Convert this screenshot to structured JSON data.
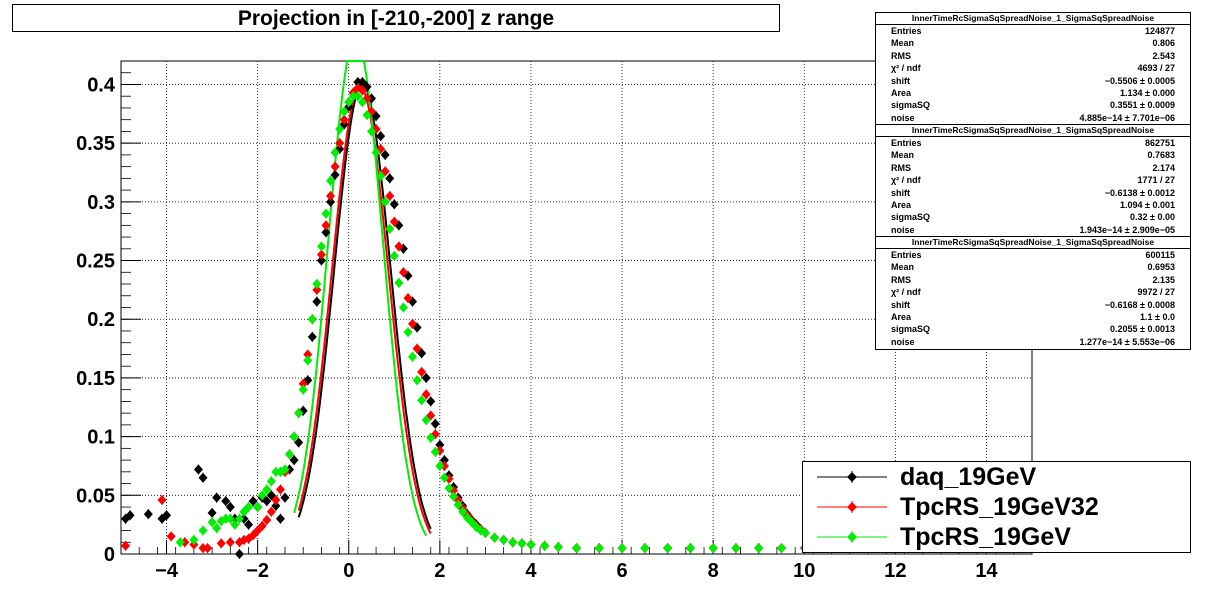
{
  "title": "Projection in [-210,-200] z range",
  "chart_data": {
    "type": "scatter",
    "xlim": [
      -5,
      15
    ],
    "ylim": [
      0,
      0.42
    ],
    "x_ticks": [
      -4,
      -2,
      0,
      2,
      4,
      6,
      8,
      10,
      12,
      14
    ],
    "x_tick_labels": [
      "−4",
      "−2",
      "0",
      "2",
      "4",
      "6",
      "8",
      "10",
      "12",
      "14"
    ],
    "y_ticks": [
      0,
      0.05,
      0.1,
      0.15,
      0.2,
      0.25,
      0.3,
      0.35,
      0.4
    ],
    "y_tick_labels": [
      "0",
      "0.05",
      "0.1",
      "0.15",
      "0.2",
      "0.25",
      "0.3",
      "0.35",
      "0.4"
    ],
    "grid": true,
    "legend_position": "bottom-right",
    "series": [
      {
        "name": "daq_19GeV",
        "color": "#000000",
        "points": [
          [
            -4.9,
            0.03
          ],
          [
            -4.8,
            0.033
          ],
          [
            -4.4,
            0.034
          ],
          [
            -4.1,
            0.03
          ],
          [
            -4.0,
            0.033
          ],
          [
            -3.3,
            0.072
          ],
          [
            -3.2,
            0.065
          ],
          [
            -3.0,
            0.035
          ],
          [
            -2.9,
            0.048
          ],
          [
            -2.7,
            0.045
          ],
          [
            -2.6,
            0.04
          ],
          [
            -2.5,
            0.03
          ],
          [
            -2.4,
            0.0
          ],
          [
            -2.3,
            0.03
          ],
          [
            -2.2,
            0.025
          ],
          [
            -2.1,
            0.045
          ],
          [
            -2.0,
            0.04
          ],
          [
            -1.9,
            0.048
          ],
          [
            -1.8,
            0.045
          ],
          [
            -1.7,
            0.05
          ],
          [
            -1.6,
            0.041
          ],
          [
            -1.5,
            0.03
          ],
          [
            -1.4,
            0.048
          ],
          [
            -1.3,
            0.072
          ],
          [
            -1.2,
            0.08
          ],
          [
            -1.1,
            0.095
          ],
          [
            -1.0,
            0.122
          ],
          [
            -0.9,
            0.148
          ],
          [
            -0.8,
            0.185
          ],
          [
            -0.7,
            0.215
          ],
          [
            -0.6,
            0.25
          ],
          [
            -0.5,
            0.274
          ],
          [
            -0.4,
            0.3
          ],
          [
            -0.3,
            0.323
          ],
          [
            -0.2,
            0.345
          ],
          [
            -0.1,
            0.366
          ],
          [
            0.0,
            0.381
          ],
          [
            0.1,
            0.393
          ],
          [
            0.2,
            0.402
          ],
          [
            0.3,
            0.402
          ],
          [
            0.4,
            0.398
          ],
          [
            0.5,
            0.388
          ],
          [
            0.6,
            0.373
          ],
          [
            0.7,
            0.356
          ],
          [
            0.8,
            0.34
          ],
          [
            0.9,
            0.32
          ],
          [
            1.0,
            0.298
          ],
          [
            1.1,
            0.28
          ],
          [
            1.2,
            0.26
          ],
          [
            1.3,
            0.237
          ],
          [
            1.4,
            0.215
          ],
          [
            1.5,
            0.193
          ],
          [
            1.6,
            0.171
          ],
          [
            1.7,
            0.15
          ],
          [
            1.8,
            0.13
          ],
          [
            1.9,
            0.111
          ],
          [
            2.0,
            0.093
          ],
          [
            2.1,
            0.08
          ],
          [
            2.2,
            0.067
          ],
          [
            2.3,
            0.057
          ],
          [
            2.4,
            0.048
          ],
          [
            2.5,
            0.041
          ],
          [
            2.6,
            0.034
          ],
          [
            2.7,
            0.029
          ],
          [
            2.8,
            0.025
          ],
          [
            2.9,
            0.021
          ],
          [
            3.0,
            0.018
          ],
          [
            3.2,
            0.014
          ],
          [
            3.4,
            0.012
          ],
          [
            3.6,
            0.01
          ],
          [
            3.8,
            0.009
          ],
          [
            4.0,
            0.008
          ],
          [
            4.3,
            0.007
          ],
          [
            4.6,
            0.006
          ],
          [
            5.0,
            0.005
          ],
          [
            5.5,
            0.005
          ],
          [
            6.0,
            0.005
          ],
          [
            6.5,
            0.005
          ],
          [
            7.0,
            0.005
          ],
          [
            7.5,
            0.005
          ],
          [
            8.0,
            0.005
          ],
          [
            8.5,
            0.005
          ],
          [
            9.0,
            0.005
          ],
          [
            9.5,
            0.005
          ],
          [
            10.0,
            0.005
          ]
        ]
      },
      {
        "name": "TpcRS_19GeV32",
        "color": "#ff0000",
        "points": [
          [
            -4.9,
            0.007
          ],
          [
            -4.1,
            0.046
          ],
          [
            -3.9,
            0.015
          ],
          [
            -3.6,
            0.01
          ],
          [
            -3.4,
            0.008
          ],
          [
            -3.2,
            0.005
          ],
          [
            -3.1,
            0.005
          ],
          [
            -2.8,
            0.009
          ],
          [
            -2.6,
            0.01
          ],
          [
            -2.4,
            0.01
          ],
          [
            -2.3,
            0.012
          ],
          [
            -2.2,
            0.013
          ],
          [
            -2.1,
            0.016
          ],
          [
            -2.0,
            0.02
          ],
          [
            -1.9,
            0.024
          ],
          [
            -1.8,
            0.029
          ],
          [
            -1.7,
            0.036
          ],
          [
            -1.6,
            0.046
          ],
          [
            -1.5,
            0.055
          ],
          [
            -1.4,
            0.07
          ],
          [
            -1.3,
            0.085
          ],
          [
            -1.2,
            0.1
          ],
          [
            -1.1,
            0.12
          ],
          [
            -1.0,
            0.145
          ],
          [
            -0.9,
            0.17
          ],
          [
            -0.8,
            0.2
          ],
          [
            -0.7,
            0.225
          ],
          [
            -0.6,
            0.255
          ],
          [
            -0.5,
            0.28
          ],
          [
            -0.4,
            0.305
          ],
          [
            -0.3,
            0.33
          ],
          [
            -0.2,
            0.35
          ],
          [
            -0.1,
            0.37
          ],
          [
            0.0,
            0.385
          ],
          [
            0.1,
            0.393
          ],
          [
            0.2,
            0.397
          ],
          [
            0.3,
            0.395
          ],
          [
            0.4,
            0.388
          ],
          [
            0.5,
            0.377
          ],
          [
            0.6,
            0.362
          ],
          [
            0.7,
            0.345
          ],
          [
            0.8,
            0.326
          ],
          [
            0.9,
            0.305
          ],
          [
            1.0,
            0.283
          ],
          [
            1.1,
            0.262
          ],
          [
            1.2,
            0.24
          ],
          [
            1.3,
            0.218
          ],
          [
            1.4,
            0.196
          ],
          [
            1.5,
            0.175
          ],
          [
            1.6,
            0.155
          ],
          [
            1.7,
            0.136
          ],
          [
            1.8,
            0.118
          ],
          [
            1.9,
            0.102
          ],
          [
            2.0,
            0.088
          ],
          [
            2.1,
            0.075
          ],
          [
            2.2,
            0.064
          ],
          [
            2.3,
            0.054
          ],
          [
            2.4,
            0.046
          ],
          [
            2.5,
            0.039
          ],
          [
            2.6,
            0.033
          ],
          [
            2.7,
            0.028
          ],
          [
            2.8,
            0.024
          ],
          [
            2.9,
            0.021
          ],
          [
            3.0,
            0.018
          ],
          [
            3.2,
            0.014
          ],
          [
            3.4,
            0.012
          ],
          [
            3.6,
            0.01
          ],
          [
            3.8,
            0.009
          ],
          [
            4.0,
            0.008
          ],
          [
            4.3,
            0.007
          ],
          [
            4.6,
            0.006
          ],
          [
            5.0,
            0.005
          ],
          [
            5.5,
            0.005
          ],
          [
            6.0,
            0.005
          ],
          [
            6.5,
            0.005
          ],
          [
            7.0,
            0.005
          ],
          [
            7.5,
            0.005
          ],
          [
            8.0,
            0.005
          ],
          [
            8.5,
            0.005
          ],
          [
            9.0,
            0.005
          ],
          [
            9.5,
            0.005
          ],
          [
            10.0,
            0.005
          ]
        ]
      },
      {
        "name": "TpcRS_19GeV",
        "color": "#00ee00",
        "points": [
          [
            -3.7,
            0.01
          ],
          [
            -3.4,
            0.012
          ],
          [
            -3.2,
            0.02
          ],
          [
            -3.0,
            0.027
          ],
          [
            -2.9,
            0.022
          ],
          [
            -2.8,
            0.028
          ],
          [
            -2.7,
            0.03
          ],
          [
            -2.6,
            0.03
          ],
          [
            -2.5,
            0.025
          ],
          [
            -2.4,
            0.03
          ],
          [
            -2.3,
            0.036
          ],
          [
            -2.2,
            0.04
          ],
          [
            -2.0,
            0.04
          ],
          [
            -1.9,
            0.05
          ],
          [
            -1.8,
            0.055
          ],
          [
            -1.7,
            0.062
          ],
          [
            -1.6,
            0.07
          ],
          [
            -1.5,
            0.07
          ],
          [
            -1.4,
            0.072
          ],
          [
            -1.3,
            0.085
          ],
          [
            -1.2,
            0.1
          ],
          [
            -1.1,
            0.12
          ],
          [
            -1.0,
            0.14
          ],
          [
            -0.9,
            0.165
          ],
          [
            -0.8,
            0.2
          ],
          [
            -0.7,
            0.23
          ],
          [
            -0.6,
            0.262
          ],
          [
            -0.5,
            0.29
          ],
          [
            -0.4,
            0.318
          ],
          [
            -0.3,
            0.342
          ],
          [
            -0.2,
            0.362
          ],
          [
            -0.1,
            0.377
          ],
          [
            0.0,
            0.385
          ],
          [
            0.1,
            0.39
          ],
          [
            0.2,
            0.39
          ],
          [
            0.3,
            0.385
          ],
          [
            0.4,
            0.374
          ],
          [
            0.5,
            0.36
          ],
          [
            0.6,
            0.342
          ],
          [
            0.7,
            0.322
          ],
          [
            0.8,
            0.3
          ],
          [
            0.9,
            0.277
          ],
          [
            1.0,
            0.254
          ],
          [
            1.1,
            0.231
          ],
          [
            1.2,
            0.21
          ],
          [
            1.3,
            0.189
          ],
          [
            1.4,
            0.168
          ],
          [
            1.5,
            0.148
          ],
          [
            1.6,
            0.131
          ],
          [
            1.7,
            0.114
          ],
          [
            1.8,
            0.099
          ],
          [
            1.9,
            0.087
          ],
          [
            2.0,
            0.075
          ],
          [
            2.1,
            0.065
          ],
          [
            2.2,
            0.056
          ],
          [
            2.3,
            0.049
          ],
          [
            2.4,
            0.042
          ],
          [
            2.5,
            0.036
          ],
          [
            2.6,
            0.031
          ],
          [
            2.7,
            0.027
          ],
          [
            2.8,
            0.023
          ],
          [
            2.9,
            0.02
          ],
          [
            3.0,
            0.018
          ],
          [
            3.2,
            0.014
          ],
          [
            3.4,
            0.012
          ],
          [
            3.6,
            0.01
          ],
          [
            3.8,
            0.009
          ],
          [
            4.0,
            0.008
          ],
          [
            4.3,
            0.007
          ],
          [
            4.6,
            0.006
          ],
          [
            5.0,
            0.005
          ],
          [
            5.5,
            0.005
          ],
          [
            6.0,
            0.005
          ],
          [
            6.5,
            0.005
          ],
          [
            7.0,
            0.005
          ],
          [
            7.5,
            0.005
          ],
          [
            8.0,
            0.005
          ],
          [
            8.5,
            0.005
          ],
          [
            9.0,
            0.005
          ],
          [
            9.5,
            0.005
          ],
          [
            10.0,
            0.005
          ]
        ]
      }
    ],
    "fits": [
      {
        "color": "#000000",
        "mu": 0.3,
        "sigma": 0.62,
        "amp": 0.4,
        "xmin": -1.1,
        "xmax": 1.8
      },
      {
        "color": "#ff0000",
        "mu": 0.25,
        "sigma": 0.62,
        "amp": 0.398,
        "xmin": -1.1,
        "xmax": 1.8
      },
      {
        "color": "#00ee00",
        "mu": 0.15,
        "sigma": 0.6,
        "amp": 0.44,
        "xmin": -1.2,
        "xmax": 1.7
      }
    ]
  },
  "stats": [
    {
      "title": "InnerTimeRcSigmaSqSpreadNoise_1_SigmaSqSpreadNoise",
      "rows": [
        {
          "name": "Entries",
          "value": "124877"
        },
        {
          "name": "Mean",
          "value": "0.806"
        },
        {
          "name": "RMS",
          "value": "2.543"
        },
        {
          "name": "χ² / ndf",
          "value": "4693 / 27"
        },
        {
          "name": "shift",
          "value": "−0.5506 ± 0.0005"
        },
        {
          "name": "Area",
          "value": "1.134 ± 0.000"
        },
        {
          "name": "sigmaSQ",
          "value": "0.3551 ± 0.0009"
        },
        {
          "name": "noise",
          "value": "4.885e−14 ± 7.701e−06"
        }
      ]
    },
    {
      "title": "InnerTimeRcSigmaSqSpreadNoise_1_SigmaSqSpreadNoise",
      "rows": [
        {
          "name": "Entries",
          "value": "862751"
        },
        {
          "name": "Mean",
          "value": "0.7683"
        },
        {
          "name": "RMS",
          "value": "2.174"
        },
        {
          "name": "χ² / ndf",
          "value": "1771 / 27"
        },
        {
          "name": "shift",
          "value": "−0.6138 ± 0.0012"
        },
        {
          "name": "Area",
          "value": "1.094 ± 0.001"
        },
        {
          "name": "sigmaSQ",
          "value": "0.32 ± 0.00"
        },
        {
          "name": "noise",
          "value": "1.943e−14 ± 2.909e−05"
        }
      ]
    },
    {
      "title": "InnerTimeRcSigmaSqSpreadNoise_1_SigmaSqSpreadNoise",
      "rows": [
        {
          "name": "Entries",
          "value": "600115"
        },
        {
          "name": "Mean",
          "value": "0.6953"
        },
        {
          "name": "RMS",
          "value": "2.135"
        },
        {
          "name": "χ² / ndf",
          "value": "9972 / 27"
        },
        {
          "name": "shift",
          "value": "−0.6168 ± 0.0008"
        },
        {
          "name": "Area",
          "value": "1.1 ± 0.0"
        },
        {
          "name": "sigmaSQ",
          "value": "0.2055 ± 0.0013"
        },
        {
          "name": "noise",
          "value": "1.277e−14 ± 5.553e−06"
        }
      ]
    }
  ],
  "legend": [
    {
      "label": "daq_19GeV",
      "color": "#000000"
    },
    {
      "label": "TpcRS_19GeV32",
      "color": "#ff0000"
    },
    {
      "label": "TpcRS_19GeV",
      "color": "#00ee00"
    }
  ]
}
